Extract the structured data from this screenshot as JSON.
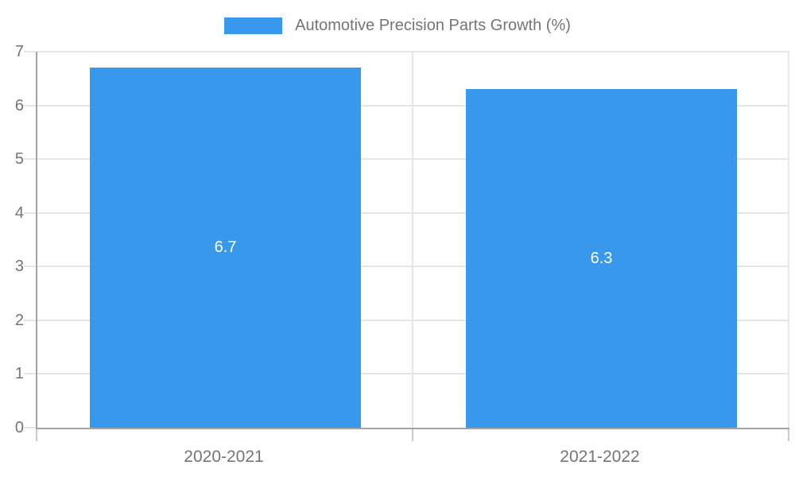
{
  "chart_data": {
    "type": "bar",
    "series_name": "Automotive Precision Parts Growth (%)",
    "categories": [
      "2020-2021",
      "2021-2022"
    ],
    "values": [
      6.7,
      6.3
    ],
    "value_labels": [
      "6.7",
      "6.3"
    ],
    "ylim": [
      0,
      7
    ],
    "yticks": [
      0,
      1,
      2,
      3,
      4,
      5,
      6,
      7
    ],
    "grid": true,
    "legend_position": "top",
    "bar_width_fraction": 0.72,
    "colors": {
      "bar": "#3899ec",
      "grid": "#e6e6e6",
      "axis": "#a3a3a3",
      "tick": "#c9c9c9",
      "label_text": "#757575",
      "value_label_text": "#ffffff",
      "background": "#ffffff"
    }
  }
}
